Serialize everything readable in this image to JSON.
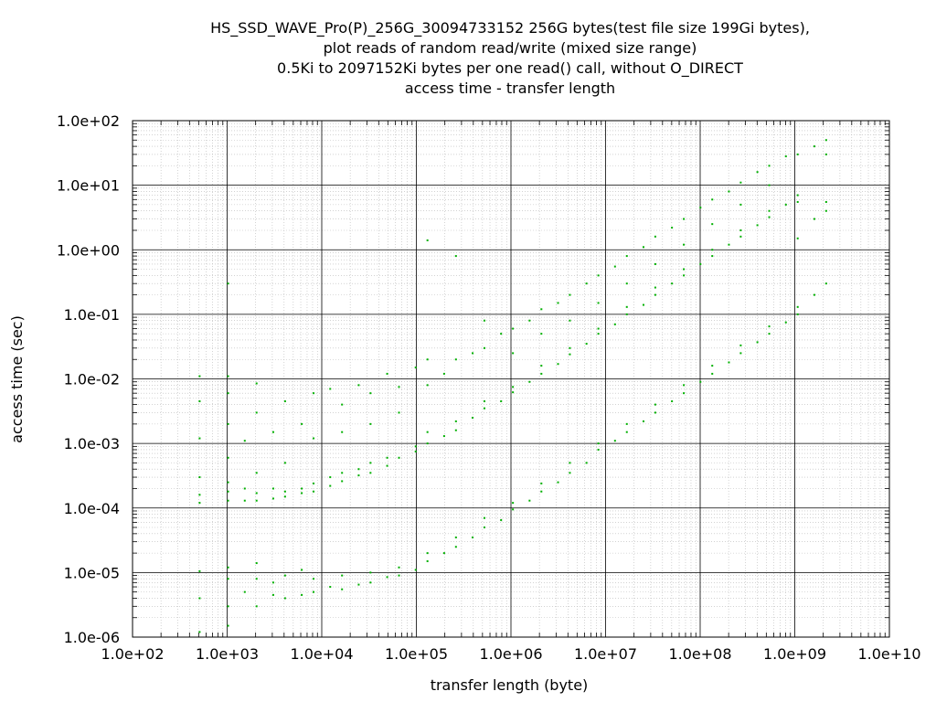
{
  "chart_data": {
    "type": "scatter",
    "title_lines": [
      "HS_SSD_WAVE_Pro(P)_256G_30094733152 256G bytes(test file size 199Gi bytes),",
      "plot reads of random read/write (mixed size range)",
      "0.5Ki to 2097152Ki bytes per one read() call, without O_DIRECT",
      "access time - transfer length"
    ],
    "xlabel": "transfer length (byte)",
    "ylabel": "access time (sec)",
    "x_scale": "log",
    "y_scale": "log",
    "xlim": [
      100,
      10000000000
    ],
    "ylim": [
      1e-06,
      100
    ],
    "x_ticks": [
      100,
      1000,
      10000,
      100000,
      1000000,
      10000000,
      100000000,
      1000000000,
      10000000000
    ],
    "x_tick_labels": [
      "1.0e+02",
      "1.0e+03",
      "1.0e+04",
      "1.0e+05",
      "1.0e+06",
      "1.0e+07",
      "1.0e+08",
      "1.0e+09",
      "1.0e+10"
    ],
    "y_ticks": [
      1e-06,
      1e-05,
      0.0001,
      0.001,
      0.01,
      0.1,
      1,
      10,
      100
    ],
    "y_tick_labels": [
      "1.0e-06",
      "1.0e-05",
      "1.0e-04",
      "1.0e-03",
      "1.0e-02",
      "1.0e-01",
      "1.0e+00",
      "1.0e+01",
      "1.0e+02"
    ],
    "grid": true,
    "minor_grid": true,
    "point_color": "#00b000",
    "series": [
      {
        "points": [
          [
            512,
            1.2e-06
          ],
          [
            512,
            4e-06
          ],
          [
            512,
            1.05e-05
          ],
          [
            512,
            0.00012
          ],
          [
            512,
            0.00016
          ],
          [
            512,
            0.0003
          ],
          [
            512,
            0.0012
          ],
          [
            512,
            0.0045
          ],
          [
            512,
            0.011
          ],
          [
            1024,
            1.5e-06
          ],
          [
            1024,
            3e-06
          ],
          [
            1024,
            8e-06
          ],
          [
            1024,
            1.2e-05
          ],
          [
            1024,
            0.00013
          ],
          [
            1024,
            0.00018
          ],
          [
            1024,
            0.00025
          ],
          [
            1024,
            0.0006
          ],
          [
            1024,
            0.002
          ],
          [
            1024,
            0.006
          ],
          [
            1024,
            0.011
          ],
          [
            1024,
            0.3
          ],
          [
            1536,
            5e-06
          ],
          [
            1536,
            0.00013
          ],
          [
            1536,
            0.0002
          ],
          [
            1536,
            0.0011
          ],
          [
            2048,
            3e-06
          ],
          [
            2048,
            8e-06
          ],
          [
            2048,
            1.4e-05
          ],
          [
            2048,
            0.00013
          ],
          [
            2048,
            0.00017
          ],
          [
            2048,
            0.00035
          ],
          [
            2048,
            0.003
          ],
          [
            2048,
            0.0085
          ],
          [
            3072,
            4.5e-06
          ],
          [
            3072,
            7e-06
          ],
          [
            3072,
            0.00014
          ],
          [
            3072,
            0.0002
          ],
          [
            3072,
            0.0015
          ],
          [
            4096,
            4e-06
          ],
          [
            4096,
            9e-06
          ],
          [
            4096,
            0.00015
          ],
          [
            4096,
            0.00018
          ],
          [
            4096,
            0.0005
          ],
          [
            4096,
            0.0045
          ],
          [
            6144,
            4.5e-06
          ],
          [
            6144,
            1.1e-05
          ],
          [
            6144,
            0.00017
          ],
          [
            6144,
            0.0002
          ],
          [
            6144,
            0.002
          ],
          [
            8192,
            5e-06
          ],
          [
            8192,
            8e-06
          ],
          [
            8192,
            0.00018
          ],
          [
            8192,
            0.00024
          ],
          [
            8192,
            0.0012
          ],
          [
            8192,
            0.006
          ],
          [
            12288,
            6e-06
          ],
          [
            12288,
            0.00022
          ],
          [
            12288,
            0.0003
          ],
          [
            12288,
            0.007
          ],
          [
            16384,
            5.5e-06
          ],
          [
            16384,
            9e-06
          ],
          [
            16384,
            0.00026
          ],
          [
            16384,
            0.00035
          ],
          [
            16384,
            0.0015
          ],
          [
            16384,
            0.004
          ],
          [
            24576,
            6.5e-06
          ],
          [
            24576,
            0.00032
          ],
          [
            24576,
            0.0004
          ],
          [
            24576,
            0.008
          ],
          [
            32768,
            7e-06
          ],
          [
            32768,
            1e-05
          ],
          [
            32768,
            0.00035
          ],
          [
            32768,
            0.0005
          ],
          [
            32768,
            0.002
          ],
          [
            32768,
            0.006
          ],
          [
            49152,
            8.5e-06
          ],
          [
            49152,
            0.00045
          ],
          [
            49152,
            0.0006
          ],
          [
            49152,
            0.012
          ],
          [
            65536,
            9e-06
          ],
          [
            65536,
            1.2e-05
          ],
          [
            65536,
            0.0006
          ],
          [
            65536,
            0.0075
          ],
          [
            65536,
            0.003
          ],
          [
            98304,
            1.1e-05
          ],
          [
            98304,
            0.00075
          ],
          [
            98304,
            0.0009
          ],
          [
            98304,
            0.015
          ],
          [
            131072,
            1.5e-05
          ],
          [
            131072,
            2e-05
          ],
          [
            131072,
            0.001
          ],
          [
            131072,
            0.0015
          ],
          [
            131072,
            0.008
          ],
          [
            131072,
            0.02
          ],
          [
            131072,
            1.4
          ],
          [
            196608,
            2e-05
          ],
          [
            196608,
            0.0013
          ],
          [
            196608,
            0.012
          ],
          [
            262144,
            2.5e-05
          ],
          [
            262144,
            3.5e-05
          ],
          [
            262144,
            0.0016
          ],
          [
            262144,
            0.0022
          ],
          [
            262144,
            0.02
          ],
          [
            262144,
            0.8
          ],
          [
            393216,
            3.5e-05
          ],
          [
            393216,
            0.0025
          ],
          [
            393216,
            0.025
          ],
          [
            524288,
            5e-05
          ],
          [
            524288,
            7e-05
          ],
          [
            524288,
            0.0035
          ],
          [
            524288,
            0.0045
          ],
          [
            524288,
            0.03
          ],
          [
            524288,
            0.08
          ],
          [
            786432,
            6.5e-05
          ],
          [
            786432,
            0.0045
          ],
          [
            786432,
            0.05
          ],
          [
            1048576,
            9.5e-05
          ],
          [
            1048576,
            0.00012
          ],
          [
            1048576,
            0.0062
          ],
          [
            1048576,
            0.0075
          ],
          [
            1048576,
            0.06
          ],
          [
            1048576,
            0.025
          ],
          [
            1572864,
            0.00013
          ],
          [
            1572864,
            0.009
          ],
          [
            1572864,
            0.08
          ],
          [
            2097152,
            0.00018
          ],
          [
            2097152,
            0.00024
          ],
          [
            2097152,
            0.012
          ],
          [
            2097152,
            0.016
          ],
          [
            2097152,
            0.12
          ],
          [
            2097152,
            0.05
          ],
          [
            3145728,
            0.00025
          ],
          [
            3145728,
            0.017
          ],
          [
            3145728,
            0.15
          ],
          [
            4194304,
            0.00035
          ],
          [
            4194304,
            0.0005
          ],
          [
            4194304,
            0.024
          ],
          [
            4194304,
            0.03
          ],
          [
            4194304,
            0.2
          ],
          [
            4194304,
            0.08
          ],
          [
            6291456,
            0.0005
          ],
          [
            6291456,
            0.035
          ],
          [
            6291456,
            0.3
          ],
          [
            8388608,
            0.0008
          ],
          [
            8388608,
            0.001
          ],
          [
            8388608,
            0.05
          ],
          [
            8388608,
            0.06
          ],
          [
            8388608,
            0.4
          ],
          [
            8388608,
            0.15
          ],
          [
            12582912,
            0.0011
          ],
          [
            12582912,
            0.07
          ],
          [
            12582912,
            0.55
          ],
          [
            16777216,
            0.0015
          ],
          [
            16777216,
            0.002
          ],
          [
            16777216,
            0.1
          ],
          [
            16777216,
            0.13
          ],
          [
            16777216,
            0.8
          ],
          [
            16777216,
            0.3
          ],
          [
            25165824,
            0.0022
          ],
          [
            25165824,
            0.14
          ],
          [
            25165824,
            1.1
          ],
          [
            33554432,
            0.003
          ],
          [
            33554432,
            0.004
          ],
          [
            33554432,
            0.2
          ],
          [
            33554432,
            0.26
          ],
          [
            33554432,
            1.6
          ],
          [
            33554432,
            0.6
          ],
          [
            50331648,
            0.0045
          ],
          [
            50331648,
            0.3
          ],
          [
            50331648,
            2.2
          ],
          [
            67108864,
            0.006
          ],
          [
            67108864,
            0.008
          ],
          [
            67108864,
            0.4
          ],
          [
            67108864,
            0.5
          ],
          [
            67108864,
            3
          ],
          [
            67108864,
            1.2
          ],
          [
            100663296,
            0.009
          ],
          [
            100663296,
            0.6
          ],
          [
            100663296,
            4.5
          ],
          [
            134217728,
            0.012
          ],
          [
            134217728,
            0.016
          ],
          [
            134217728,
            0.8
          ],
          [
            134217728,
            1
          ],
          [
            134217728,
            6
          ],
          [
            134217728,
            2.5
          ],
          [
            201326592,
            0.018
          ],
          [
            201326592,
            1.2
          ],
          [
            201326592,
            8
          ],
          [
            268435456,
            0.025
          ],
          [
            268435456,
            0.033
          ],
          [
            268435456,
            1.6
          ],
          [
            268435456,
            2
          ],
          [
            268435456,
            11
          ],
          [
            268435456,
            5
          ],
          [
            402653184,
            0.037
          ],
          [
            402653184,
            2.4
          ],
          [
            402653184,
            16
          ],
          [
            536870912,
            0.05
          ],
          [
            536870912,
            0.065
          ],
          [
            536870912,
            3.2
          ],
          [
            536870912,
            4
          ],
          [
            536870912,
            20
          ],
          [
            536870912,
            10
          ],
          [
            805306368,
            0.075
          ],
          [
            805306368,
            5
          ],
          [
            805306368,
            28
          ],
          [
            1073741824,
            0.1
          ],
          [
            1073741824,
            0.13
          ],
          [
            1073741824,
            5.5
          ],
          [
            1073741824,
            7
          ],
          [
            1073741824,
            30
          ],
          [
            1073741824,
            1.5
          ],
          [
            1610612736,
            0.2
          ],
          [
            1610612736,
            3
          ],
          [
            1610612736,
            40
          ],
          [
            2147483648,
            0.3
          ],
          [
            2147483648,
            4
          ],
          [
            2147483648,
            5.5
          ],
          [
            2147483648,
            30
          ],
          [
            2147483648,
            50
          ]
        ]
      }
    ]
  }
}
